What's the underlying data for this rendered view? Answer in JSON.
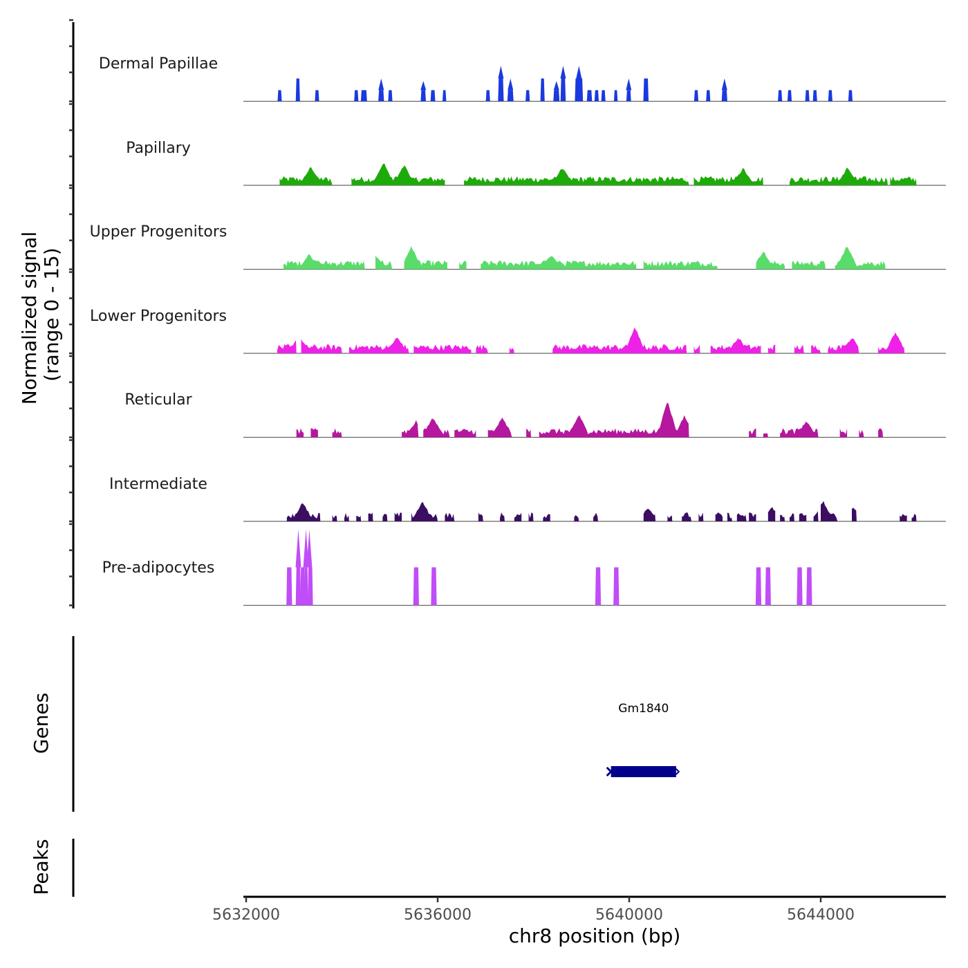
{
  "chart_data": {
    "type": "area",
    "title": "",
    "xlabel": "chr8 position (bp)",
    "ylabel": "Normalized signal\n(range 0 - 15)",
    "ylabel_lines": [
      "Normalized signal",
      "(range 0 - 15)"
    ],
    "xlim": [
      5631950,
      5646620
    ],
    "ylim": [
      0,
      15
    ],
    "x_ticks": [
      5632000,
      5636000,
      5640000,
      5644000
    ],
    "x_tick_labels": [
      "5632000",
      "5636000",
      "5640000",
      "5644000"
    ],
    "grid": false,
    "legend": "none",
    "series": [
      {
        "name": "Dermal Papillae",
        "color": "#1A3ADE",
        "peaks": [
          [
            5632700,
            60,
            2.2
          ],
          [
            5633080,
            60,
            4.5
          ],
          [
            5633480,
            60,
            2.2
          ],
          [
            5634300,
            60,
            2.2
          ],
          [
            5634460,
            100,
            2.2
          ],
          [
            5634820,
            90,
            2.2,
            4.5
          ],
          [
            5635010,
            60,
            2.2
          ],
          [
            5635700,
            80,
            2.2,
            4.0
          ],
          [
            5635900,
            70,
            2.2
          ],
          [
            5636140,
            50,
            2.2
          ],
          [
            5637050,
            60,
            2.2
          ],
          [
            5637320,
            90,
            4.5,
            7.0
          ],
          [
            5637520,
            100,
            2.2,
            4.5
          ],
          [
            5637880,
            60,
            2.2
          ],
          [
            5638190,
            60,
            4.5
          ],
          [
            5638480,
            100,
            2.2,
            4.0
          ],
          [
            5638620,
            80,
            4.5,
            7.0
          ],
          [
            5638950,
            140,
            4.5,
            7.0
          ],
          [
            5639170,
            80,
            2.2
          ],
          [
            5639320,
            60,
            2.2
          ],
          [
            5639460,
            60,
            2.2
          ],
          [
            5639720,
            50,
            2.2
          ],
          [
            5639990,
            70,
            2.2,
            4.5
          ],
          [
            5640350,
            80,
            4.5
          ],
          [
            5641400,
            60,
            2.2
          ],
          [
            5641650,
            60,
            2.2
          ],
          [
            5641990,
            90,
            2.2,
            4.5
          ],
          [
            5643150,
            60,
            2.2
          ],
          [
            5643350,
            60,
            2.2
          ],
          [
            5643720,
            60,
            2.2
          ],
          [
            5643880,
            60,
            2.2
          ],
          [
            5644200,
            60,
            2.2
          ],
          [
            5644620,
            60,
            2.2
          ]
        ]
      },
      {
        "name": "Papillary",
        "color": "#1FAA0B",
        "profile": "dense",
        "regions": [
          [
            5632700,
            5633800
          ],
          [
            5634200,
            5636150
          ],
          [
            5636550,
            5641250
          ],
          [
            5641350,
            5642800
          ],
          [
            5643350,
            5645400
          ],
          [
            5645450,
            5646000
          ]
        ],
        "peaks_max": [
          [
            5633350,
            3.5
          ],
          [
            5634870,
            4.3
          ],
          [
            5635300,
            3.8
          ],
          [
            5638600,
            3.3
          ],
          [
            5642380,
            3.2
          ],
          [
            5644560,
            3.3
          ]
        ]
      },
      {
        "name": "Upper Progenitors",
        "color": "#5ADC6A",
        "profile": "dense",
        "regions": [
          [
            5632780,
            5634480
          ],
          [
            5634700,
            5635050
          ],
          [
            5635300,
            5636200
          ],
          [
            5636450,
            5636600
          ],
          [
            5636900,
            5640150
          ],
          [
            5640300,
            5641850
          ],
          [
            5642650,
            5643250
          ],
          [
            5643400,
            5644100
          ],
          [
            5644300,
            5645350
          ]
        ],
        "peaks_max": [
          [
            5633320,
            2.8
          ],
          [
            5634690,
            2.7
          ],
          [
            5635450,
            4.3
          ],
          [
            5638380,
            2.7
          ],
          [
            5642800,
            3.4
          ],
          [
            5644550,
            4.5
          ]
        ]
      },
      {
        "name": "Lower Progenitors",
        "color": "#EE22E6",
        "profile": "dense",
        "regions": [
          [
            5632650,
            5633050
          ],
          [
            5633150,
            5634000
          ],
          [
            5634150,
            5635400
          ],
          [
            5635500,
            5636700
          ],
          [
            5636800,
            5637050
          ],
          [
            5637500,
            5637600
          ],
          [
            5638400,
            5641200
          ],
          [
            5641350,
            5641480
          ],
          [
            5641700,
            5642750
          ],
          [
            5642900,
            5643050
          ],
          [
            5643450,
            5643650
          ],
          [
            5643800,
            5644000
          ],
          [
            5644150,
            5644800
          ],
          [
            5645200,
            5645750
          ]
        ],
        "peaks_max": [
          [
            5633100,
            3.5
          ],
          [
            5635150,
            3.0
          ],
          [
            5640120,
            5.0
          ],
          [
            5642280,
            3.0
          ],
          [
            5644650,
            3.0
          ],
          [
            5645560,
            4.0
          ]
        ]
      },
      {
        "name": "Reticular",
        "color": "#B5179E",
        "profile": "dense",
        "regions": [
          [
            5633050,
            5633200
          ],
          [
            5633350,
            5633500
          ],
          [
            5633800,
            5634000
          ],
          [
            5635250,
            5635600
          ],
          [
            5635700,
            5636250
          ],
          [
            5636350,
            5636800
          ],
          [
            5637050,
            5637550
          ],
          [
            5637850,
            5637950
          ],
          [
            5638120,
            5641250
          ],
          [
            5642500,
            5642650
          ],
          [
            5642800,
            5642900
          ],
          [
            5643150,
            5643950
          ],
          [
            5644400,
            5644550
          ],
          [
            5644800,
            5644900
          ],
          [
            5645200,
            5645300
          ]
        ],
        "peaks_max": [
          [
            5635550,
            3.0
          ],
          [
            5635900,
            3.7
          ],
          [
            5637350,
            3.8
          ],
          [
            5638950,
            4.3
          ],
          [
            5640800,
            7.0
          ],
          [
            5641150,
            4.0
          ],
          [
            5643700,
            3.0
          ]
        ]
      },
      {
        "name": "Intermediate",
        "color": "#3B0E62",
        "profile": "dense",
        "regions": [
          [
            5632850,
            5633550
          ],
          [
            5633800,
            5633900
          ],
          [
            5634050,
            5634150
          ],
          [
            5634300,
            5634400
          ],
          [
            5634550,
            5634650
          ],
          [
            5634850,
            5634950
          ],
          [
            5635100,
            5635250
          ],
          [
            5635450,
            5636000
          ],
          [
            5636150,
            5636350
          ],
          [
            5636850,
            5636950
          ],
          [
            5637300,
            5637400
          ],
          [
            5637600,
            5637750
          ],
          [
            5637900,
            5638000
          ],
          [
            5638200,
            5638350
          ],
          [
            5638850,
            5638950
          ],
          [
            5639250,
            5639350
          ],
          [
            5640300,
            5640550
          ],
          [
            5640800,
            5640900
          ],
          [
            5641100,
            5641300
          ],
          [
            5641450,
            5641550
          ],
          [
            5641800,
            5641950
          ],
          [
            5642050,
            5642150
          ],
          [
            5642250,
            5642450
          ],
          [
            5642500,
            5642650
          ],
          [
            5642900,
            5643050
          ],
          [
            5643150,
            5643250
          ],
          [
            5643350,
            5643450
          ],
          [
            5643550,
            5643700
          ],
          [
            5643850,
            5643950
          ],
          [
            5644000,
            5644350
          ],
          [
            5644650,
            5644750
          ],
          [
            5645650,
            5645800
          ],
          [
            5645900,
            5646000
          ]
        ],
        "peaks_max": [
          [
            5633180,
            3.5
          ],
          [
            5635680,
            3.7
          ],
          [
            5644050,
            3.8
          ],
          [
            5642980,
            2.6
          ],
          [
            5644690,
            2.6
          ],
          [
            5640400,
            2.5
          ]
        ]
      },
      {
        "name": "Pre-adipocytes",
        "color": "#C04DF7",
        "peaks": [
          [
            5632900,
            90,
            7.5
          ],
          [
            5633090,
            80,
            7.5,
            15
          ],
          [
            5633180,
            70,
            7.5
          ],
          [
            5633250,
            60,
            7.5,
            15
          ],
          [
            5633320,
            40,
            7.5,
            15
          ],
          [
            5633350,
            60,
            7.5
          ],
          [
            5635550,
            90,
            7.5
          ],
          [
            5635920,
            90,
            7.5
          ],
          [
            5639350,
            90,
            7.5
          ],
          [
            5639730,
            90,
            7.5
          ],
          [
            5642700,
            90,
            7.5
          ],
          [
            5642900,
            90,
            7.5
          ],
          [
            5643560,
            90,
            7.5
          ],
          [
            5643760,
            90,
            7.5
          ]
        ]
      }
    ],
    "genes_track": {
      "label": "Genes",
      "genes": [
        {
          "name": "Gm1840",
          "start": 5639620,
          "end": 5640980,
          "strand": "+",
          "color": "#00008B"
        }
      ]
    },
    "peaks_track": {
      "label": "Peaks",
      "regions": []
    }
  }
}
